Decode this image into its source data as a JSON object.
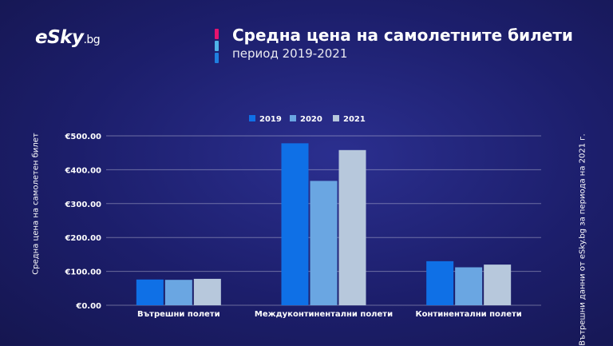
{
  "brand": {
    "logo_main": "eSky",
    "logo_suffix": ".bg"
  },
  "header": {
    "title": "Средна цена на самолетните билети",
    "subtitle": "период 2019-2021"
  },
  "accent_colors": [
    "#e5136e",
    "#4fb3e8",
    "#1f7fe0"
  ],
  "side_note": "Вътрешни данни от eSky.bg за периода  на  2021 г.",
  "chart_data": {
    "type": "bar",
    "title": "Средна цена на самолетните билети",
    "ylabel": "Средна цена на самолетен билет",
    "xlabel": "",
    "categories": [
      "Вътрешни полети",
      "Междуконтинентални полети",
      "Континентални полети"
    ],
    "series": [
      {
        "name": "2019",
        "color": "#0f70e6",
        "values": [
          76,
          478,
          130
        ]
      },
      {
        "name": "2020",
        "color": "#6aa6e2",
        "values": [
          75,
          367,
          112
        ]
      },
      {
        "name": "2021",
        "color": "#b7c8dc",
        "values": [
          78,
          458,
          120
        ]
      }
    ],
    "ylim": [
      0,
      500
    ],
    "yticks": [
      0,
      100,
      200,
      300,
      400,
      500
    ],
    "ytick_labels": [
      "€0.00",
      "€100.00",
      "€200.00",
      "€300.00",
      "€400.00",
      "€500.00"
    ],
    "grid": true,
    "legend": "top-center"
  }
}
